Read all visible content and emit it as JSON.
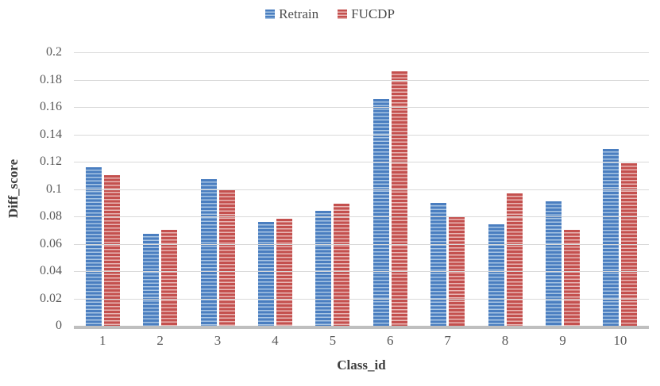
{
  "chart_data": {
    "type": "bar",
    "title": "",
    "categories": [
      "1",
      "2",
      "3",
      "4",
      "5",
      "6",
      "7",
      "8",
      "9",
      "10"
    ],
    "series": [
      {
        "name": "Retrain",
        "values": [
          0.116,
          0.067,
          0.107,
          0.076,
          0.084,
          0.166,
          0.09,
          0.074,
          0.091,
          0.129
        ],
        "color_dark": "#4a7ec0",
        "color_light": "#a9c6e4"
      },
      {
        "name": "FUCDP",
        "values": [
          0.11,
          0.07,
          0.099,
          0.078,
          0.089,
          0.186,
          0.08,
          0.097,
          0.07,
          0.119
        ],
        "color_dark": "#c4504e",
        "color_light": "#e9b8b6"
      }
    ],
    "xlabel": "Class_id",
    "ylabel": "Diff_score",
    "ylim": [
      0,
      0.2
    ],
    "ytick_step": 0.02,
    "yticks": [
      "0.2",
      "0.18",
      "0.16",
      "0.14",
      "0.12",
      "0.1",
      "0.08",
      "0.06",
      "0.04",
      "0.02",
      "0"
    ],
    "grid": true,
    "legend_position": "top",
    "bar_fill_pattern": "horizontal-stripes",
    "colors": {
      "gridline": "#d9d9d9",
      "axis_line": "#bfbfbf",
      "tick_text": "#595959",
      "title_text": "#3f3f3f"
    }
  }
}
